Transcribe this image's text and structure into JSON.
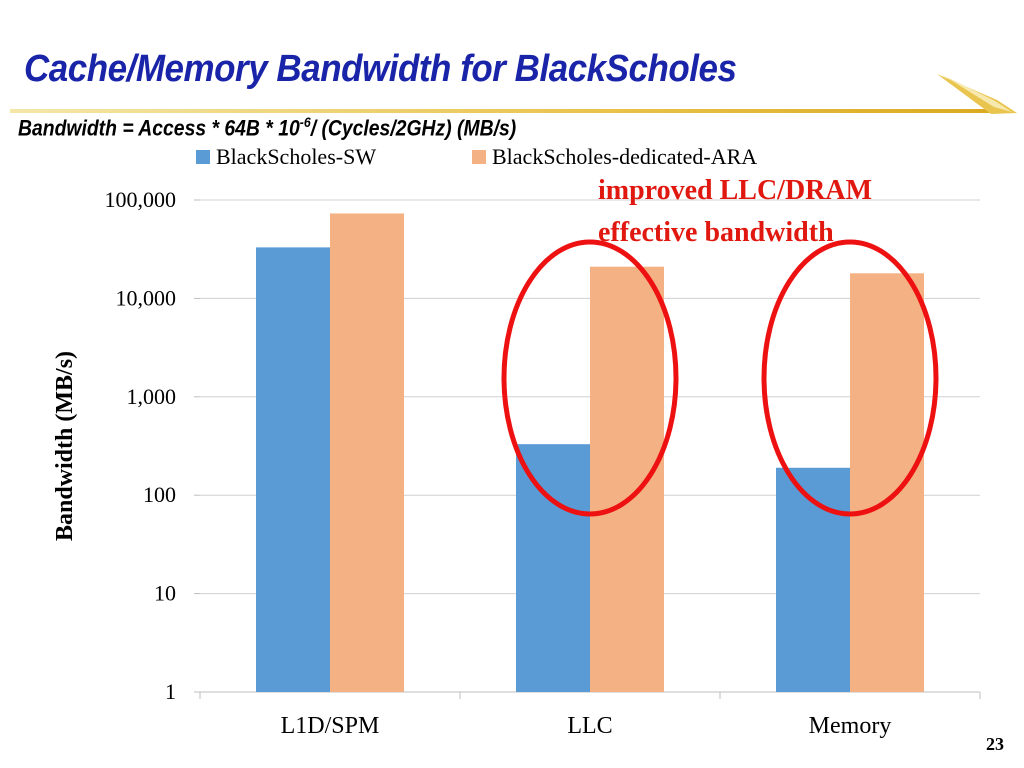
{
  "slide": {
    "title": "Cache/Memory Bandwidth for BlackScholes",
    "subtitle_main": "Bandwidth = Access * 64B * 10",
    "subtitle_exp": "-6",
    "subtitle_tail": "/ (Cycles/2GHz) (MB/s)",
    "annotation_line1": "improved LLC/DRAM",
    "annotation_line2": "effective bandwidth",
    "page_number": "23"
  },
  "colors": {
    "title": "#1a24a8",
    "sw_series": "#5b9bd5",
    "ara_series": "#f4b183",
    "annotation": "#e0180f",
    "highlight_ellipse": "#ee1111"
  },
  "chart_data": {
    "type": "bar",
    "scale": "log",
    "categories": [
      "L1D/SPM",
      "LLC",
      "Memory"
    ],
    "series": [
      {
        "name": "BlackScholes-SW",
        "values": [
          33000,
          330,
          190
        ]
      },
      {
        "name": "BlackScholes-dedicated-ARA",
        "values": [
          73000,
          21000,
          18000
        ]
      }
    ],
    "ylabel": "Bandwidth (MB/s)",
    "ylim": [
      1,
      100000
    ],
    "yticks": [
      1,
      10,
      100,
      1000,
      10000,
      100000
    ],
    "ytick_labels": [
      "1",
      "10",
      "100",
      "1,000",
      "10,000",
      "100,000"
    ],
    "grid": true,
    "legend_position": "top",
    "highlighted_categories": [
      "LLC",
      "Memory"
    ]
  }
}
